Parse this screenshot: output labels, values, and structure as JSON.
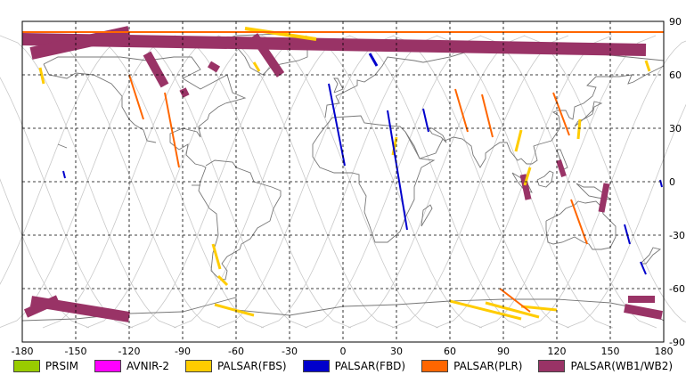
{
  "map": {
    "lon_ticks": [
      "-180",
      "-150",
      "-120",
      "-90",
      "-60",
      "-30",
      "0",
      "30",
      "60",
      "90",
      "120",
      "150",
      "180"
    ],
    "lat_ticks": [
      "90",
      "60",
      "30",
      "0",
      "-30",
      "-60",
      "-90"
    ],
    "lon_values": [
      -180,
      -150,
      -120,
      -90,
      -60,
      -30,
      0,
      30,
      60,
      90,
      120,
      150,
      180
    ],
    "lat_values": [
      90,
      60,
      30,
      0,
      -30,
      -60,
      -90
    ]
  },
  "legend": [
    {
      "label": "PRSIM",
      "color": "#99cc00"
    },
    {
      "label": "AVNIR-2",
      "color": "#ff00ff"
    },
    {
      "label": "PALSAR(FBS)",
      "color": "#ffcc00"
    },
    {
      "label": "PALSAR(FBD)",
      "color": "#0000cc"
    },
    {
      "label": "PALSAR(PLR)",
      "color": "#ff6600"
    },
    {
      "label": "PALSAR(WB1/WB2)",
      "color": "#993366"
    }
  ],
  "colors": {
    "coast": "#777777",
    "orbit": "#c8c8c8",
    "grid": "#000000"
  },
  "swaths": [
    {
      "type": "wb",
      "lon1": -180,
      "lat1": 80,
      "lon2": 170,
      "lat2": 74,
      "w": 14
    },
    {
      "type": "wb",
      "lon1": -175,
      "lat1": 72,
      "lon2": -120,
      "lat2": 84,
      "w": 14
    },
    {
      "type": "wb",
      "lon1": -110,
      "lat1": 72,
      "lon2": -100,
      "lat2": 54,
      "w": 10
    },
    {
      "type": "wb",
      "lon1": -75,
      "lat1": 66,
      "lon2": -70,
      "lat2": 63,
      "w": 8
    },
    {
      "type": "wb",
      "lon1": -90,
      "lat1": 52,
      "lon2": -88,
      "lat2": 48,
      "w": 8
    },
    {
      "type": "wb",
      "lon1": -50,
      "lat1": 82,
      "lon2": -35,
      "lat2": 60,
      "w": 10
    },
    {
      "type": "wb",
      "lon1": 101,
      "lat1": 4,
      "lon2": 104,
      "lat2": -10,
      "w": 7
    },
    {
      "type": "wb",
      "lon1": 121,
      "lat1": 12,
      "lon2": 124,
      "lat2": 3,
      "w": 6
    },
    {
      "type": "wb",
      "lon1": 148,
      "lat1": -1,
      "lon2": 145,
      "lat2": -17,
      "w": 7
    },
    {
      "type": "wb",
      "lon1": -175,
      "lat1": -67,
      "lon2": -120,
      "lat2": -76,
      "w": 12
    },
    {
      "type": "wb",
      "lon1": -178,
      "lat1": -74,
      "lon2": -160,
      "lat2": -66,
      "w": 10
    },
    {
      "type": "wb",
      "lon1": 158,
      "lat1": -71,
      "lon2": 179,
      "lat2": -75,
      "w": 10
    },
    {
      "type": "wb",
      "lon1": 160,
      "lat1": -66,
      "lon2": 175,
      "lat2": -66,
      "w": 8
    },
    {
      "type": "fbs",
      "lon1": -55,
      "lat1": 86,
      "lon2": -15,
      "lat2": 80,
      "w": 4
    },
    {
      "type": "fbs",
      "lon1": -170,
      "lat1": 64,
      "lon2": -168,
      "lat2": 55,
      "w": 3
    },
    {
      "type": "fbs",
      "lon1": -50,
      "lat1": 67,
      "lon2": -47,
      "lat2": 62,
      "w": 3
    },
    {
      "type": "fbs",
      "lon1": 100,
      "lat1": 29,
      "lon2": 97,
      "lat2": 17,
      "w": 3
    },
    {
      "type": "fbs",
      "lon1": 30,
      "lat1": 25,
      "lon2": 28,
      "lat2": 15,
      "w": 3
    },
    {
      "type": "fbs",
      "lon1": 105,
      "lat1": 8,
      "lon2": 102,
      "lat2": -2,
      "w": 3
    },
    {
      "type": "fbs",
      "lon1": 133,
      "lat1": 35,
      "lon2": 132,
      "lat2": 24,
      "w": 3
    },
    {
      "type": "fbs",
      "lon1": -73,
      "lat1": -35,
      "lon2": -69,
      "lat2": -49,
      "w": 3
    },
    {
      "type": "fbs",
      "lon1": -70,
      "lat1": -53,
      "lon2": -65,
      "lat2": -58,
      "w": 3
    },
    {
      "type": "fbs",
      "lon1": -72,
      "lat1": -69,
      "lon2": -50,
      "lat2": -75,
      "w": 3
    },
    {
      "type": "fbs",
      "lon1": 60,
      "lat1": -67,
      "lon2": 100,
      "lat2": -77,
      "w": 3
    },
    {
      "type": "fbs",
      "lon1": 80,
      "lat1": -68,
      "lon2": 110,
      "lat2": -76,
      "w": 3
    },
    {
      "type": "fbs",
      "lon1": 100,
      "lat1": -70,
      "lon2": 120,
      "lat2": -72,
      "w": 3
    },
    {
      "type": "fbs",
      "lon1": 170,
      "lat1": 68,
      "lon2": 172,
      "lat2": 62,
      "w": 3
    },
    {
      "type": "fbd",
      "lon1": -8,
      "lat1": 55,
      "lon2": 1,
      "lat2": 9,
      "w": 2
    },
    {
      "type": "fbd",
      "lon1": 25,
      "lat1": 40,
      "lon2": 36,
      "lat2": -27,
      "w": 2
    },
    {
      "type": "fbd",
      "lon1": 15,
      "lat1": 72,
      "lon2": 19,
      "lat2": 65,
      "w": 3
    },
    {
      "type": "fbd",
      "lon1": 45,
      "lat1": 41,
      "lon2": 48,
      "lat2": 28,
      "w": 2
    },
    {
      "type": "fbd",
      "lon1": -157,
      "lat1": 6,
      "lon2": -156,
      "lat2": 2,
      "w": 2
    },
    {
      "type": "fbd",
      "lon1": 158,
      "lat1": -24,
      "lon2": 161,
      "lat2": -35,
      "w": 2
    },
    {
      "type": "fbd",
      "lon1": 167,
      "lat1": -45,
      "lon2": 170,
      "lat2": -52,
      "w": 2
    },
    {
      "type": "fbd",
      "lon1": 178,
      "lat1": 1,
      "lon2": 179,
      "lat2": -3,
      "w": 2
    },
    {
      "type": "plr",
      "lon1": -180,
      "lat1": 84,
      "lon2": 180,
      "lat2": 84,
      "w": 2
    },
    {
      "type": "plr",
      "lon1": -120,
      "lat1": 60,
      "lon2": -112,
      "lat2": 35,
      "w": 2
    },
    {
      "type": "plr",
      "lon1": -100,
      "lat1": 50,
      "lon2": -92,
      "lat2": 8,
      "w": 2
    },
    {
      "type": "plr",
      "lon1": 63,
      "lat1": 52,
      "lon2": 70,
      "lat2": 28,
      "w": 2
    },
    {
      "type": "plr",
      "lon1": 78,
      "lat1": 49,
      "lon2": 84,
      "lat2": 25,
      "w": 2
    },
    {
      "type": "plr",
      "lon1": 118,
      "lat1": 50,
      "lon2": 127,
      "lat2": 26,
      "w": 2
    },
    {
      "type": "plr",
      "lon1": 128,
      "lat1": -10,
      "lon2": 137,
      "lat2": -35,
      "w": 2
    },
    {
      "type": "plr",
      "lon1": 88,
      "lat1": -60,
      "lon2": 105,
      "lat2": -73,
      "w": 2
    }
  ]
}
